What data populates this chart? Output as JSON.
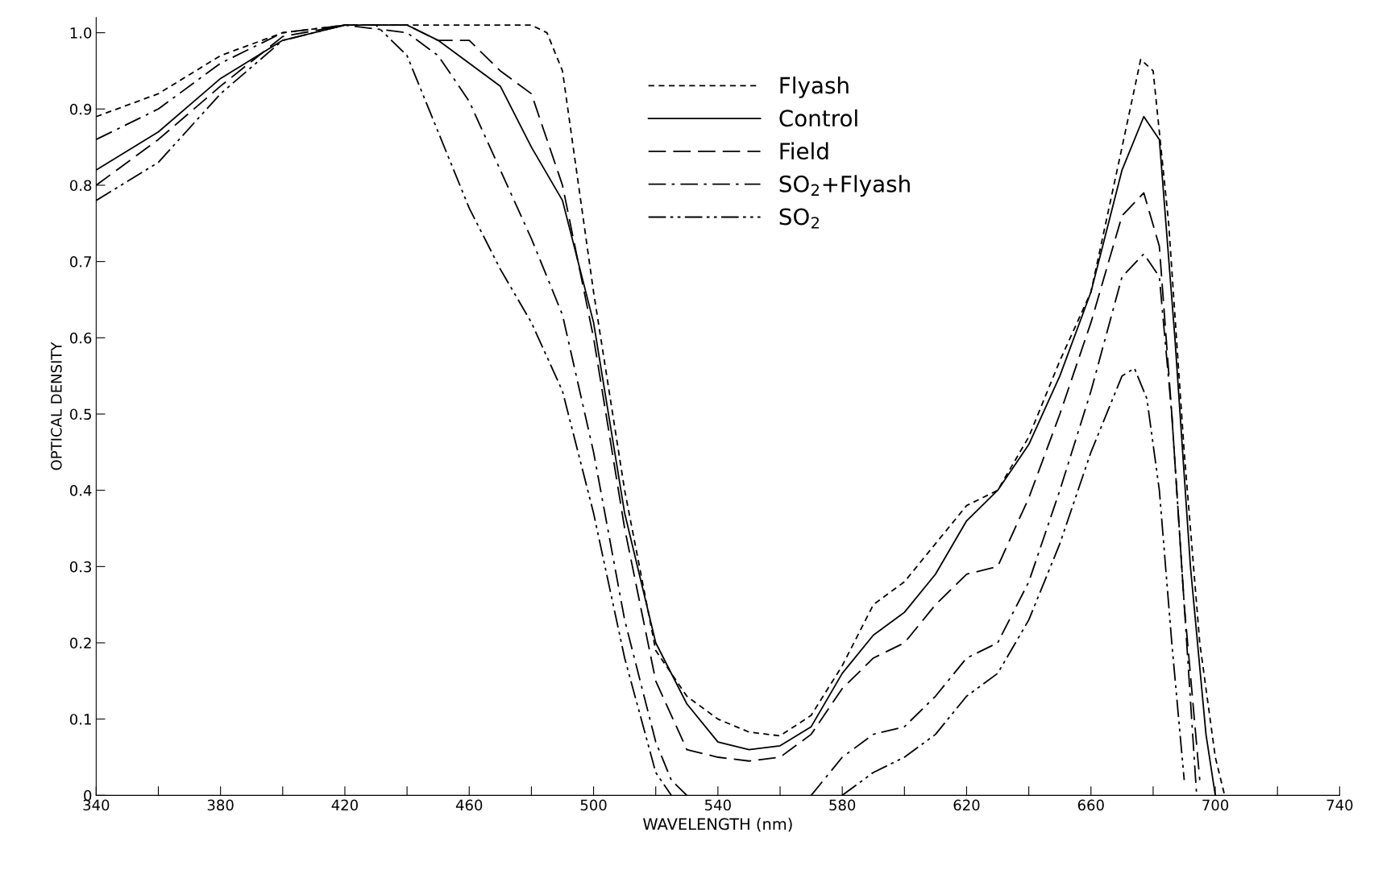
{
  "chart_data": {
    "type": "line",
    "xlabel": "WAVELENGTH (nm)",
    "ylabel": "OPTICAL DENSITY",
    "xlim": [
      340,
      740
    ],
    "ylim": [
      0,
      1.02
    ],
    "xticks": [
      340,
      {
        "value": 360,
        "label": null
      },
      380,
      {
        "value": 400,
        "label": null
      },
      420,
      {
        "value": 440,
        "label": null
      },
      460,
      {
        "value": 480,
        "label": null
      },
      500,
      {
        "value": 520,
        "label": null
      },
      540,
      {
        "value": 560,
        "label": null
      },
      580,
      {
        "value": 600,
        "label": null
      },
      620,
      {
        "value": 640,
        "label": null
      },
      660,
      {
        "value": 680,
        "label": null
      },
      700,
      {
        "value": 720,
        "label": null
      },
      740
    ],
    "yticks": [
      0,
      0.1,
      0.2,
      0.3,
      0.4,
      0.5,
      0.6,
      0.7,
      0.8,
      0.9,
      {
        "value": 1.0,
        "label": "1.0"
      }
    ],
    "grid": false,
    "legend": "top",
    "marker": "none",
    "series": [
      {
        "name": "Flyash",
        "color": "#000000",
        "line_style": "dashed",
        "x": [
          340,
          360,
          380,
          400,
          420,
          440,
          460,
          480,
          485,
          490,
          500,
          510,
          520,
          530,
          540,
          550,
          560,
          570,
          580,
          590,
          600,
          610,
          620,
          630,
          640,
          650,
          660,
          670,
          676,
          680,
          685,
          690,
          695,
          700,
          703
        ],
        "values": [
          0.89,
          0.92,
          0.97,
          1.0,
          1.01,
          1.01,
          1.01,
          1.01,
          1.0,
          0.95,
          0.66,
          0.4,
          0.19,
          0.13,
          0.1,
          0.083,
          0.078,
          0.105,
          0.17,
          0.25,
          0.28,
          0.33,
          0.38,
          0.4,
          0.47,
          0.57,
          0.66,
          0.85,
          0.965,
          0.95,
          0.75,
          0.45,
          0.2,
          0.05,
          0.0
        ]
      },
      {
        "name": "Control",
        "color": "#000000",
        "line_style": "solid",
        "x": [
          340,
          360,
          380,
          400,
          420,
          440,
          450,
          460,
          470,
          480,
          490,
          500,
          510,
          520,
          530,
          540,
          550,
          560,
          570,
          580,
          590,
          600,
          610,
          620,
          630,
          640,
          650,
          660,
          670,
          677,
          682,
          687,
          692,
          697,
          700
        ],
        "values": [
          0.82,
          0.87,
          0.94,
          0.99,
          1.01,
          1.01,
          0.99,
          0.96,
          0.93,
          0.85,
          0.78,
          0.62,
          0.37,
          0.2,
          0.12,
          0.07,
          0.06,
          0.065,
          0.09,
          0.16,
          0.21,
          0.24,
          0.29,
          0.36,
          0.4,
          0.46,
          0.55,
          0.66,
          0.82,
          0.89,
          0.86,
          0.6,
          0.3,
          0.08,
          0.0
        ]
      },
      {
        "name": "Field",
        "color": "#000000",
        "line_style": "long_dashed",
        "x": [
          340,
          360,
          380,
          400,
          420,
          440,
          450,
          460,
          470,
          480,
          490,
          500,
          510,
          520,
          530,
          540,
          550,
          560,
          570,
          580,
          590,
          600,
          610,
          620,
          630,
          640,
          650,
          660,
          670,
          677,
          682,
          686,
          690,
          695
        ],
        "values": [
          0.8,
          0.86,
          0.93,
          0.995,
          1.01,
          1.01,
          0.99,
          0.99,
          0.95,
          0.92,
          0.8,
          0.6,
          0.35,
          0.15,
          0.06,
          0.05,
          0.045,
          0.05,
          0.08,
          0.14,
          0.18,
          0.2,
          0.25,
          0.29,
          0.3,
          0.39,
          0.5,
          0.62,
          0.76,
          0.79,
          0.72,
          0.5,
          0.25,
          0.02
        ]
      },
      {
        "name": "SO$_{2}$+Flyash",
        "color": "#000000",
        "line_style": "dashdot",
        "x": [
          340,
          360,
          380,
          400,
          420,
          440,
          450,
          460,
          470,
          480,
          490,
          500,
          510,
          520,
          525,
          530,
          550,
          570,
          580,
          590,
          600,
          610,
          620,
          630,
          640,
          650,
          660,
          670,
          677,
          682,
          686,
          690,
          694
        ],
        "values": [
          0.86,
          0.9,
          0.96,
          1.0,
          1.01,
          1.0,
          0.97,
          0.91,
          0.82,
          0.73,
          0.63,
          0.45,
          0.23,
          0.07,
          0.02,
          0.0,
          null,
          0.0,
          0.05,
          0.08,
          0.09,
          0.13,
          0.18,
          0.2,
          0.28,
          0.4,
          0.53,
          0.68,
          0.71,
          0.68,
          0.5,
          0.25,
          0.0
        ]
      },
      {
        "name": "SO$_{2}$",
        "color": "#000000",
        "line_style": "dashdotdot",
        "x": [
          340,
          360,
          380,
          400,
          420,
          430,
          440,
          450,
          460,
          470,
          480,
          490,
          500,
          510,
          520,
          525,
          550,
          580,
          590,
          600,
          610,
          620,
          630,
          640,
          650,
          660,
          670,
          674,
          678,
          682,
          686,
          690
        ],
        "values": [
          0.78,
          0.83,
          0.92,
          0.99,
          1.01,
          1.01,
          0.97,
          0.87,
          0.77,
          0.69,
          0.62,
          0.53,
          0.37,
          0.18,
          0.03,
          0.0,
          null,
          0.0,
          0.03,
          0.05,
          0.08,
          0.13,
          0.16,
          0.23,
          0.33,
          0.45,
          0.55,
          0.56,
          0.52,
          0.4,
          0.2,
          0.02
        ]
      }
    ]
  }
}
